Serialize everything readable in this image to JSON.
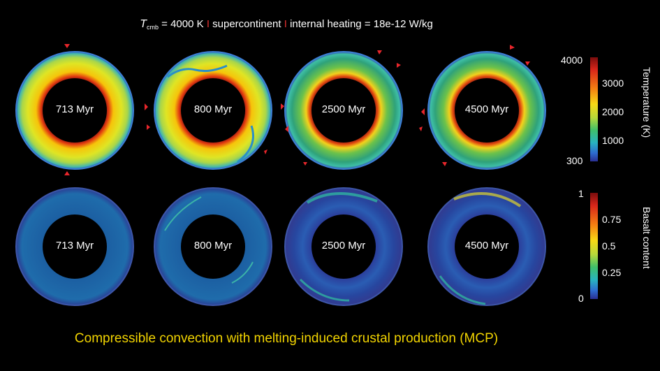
{
  "header": {
    "t_symbol": "T",
    "t_sub": "cmb",
    "t_value": " = 4000 K ",
    "sep1": "I",
    "part2": " supercontinent ",
    "sep2": "I",
    "part3": " internal heating = 18e-12 W/kg"
  },
  "row_temperature": {
    "panels": [
      {
        "label": "713 Myr"
      },
      {
        "label": "800 Myr"
      },
      {
        "label": "2500 Myr"
      },
      {
        "label": "4500 Myr"
      }
    ]
  },
  "row_basalt": {
    "panels": [
      {
        "label": "713 Myr"
      },
      {
        "label": "800 Myr"
      },
      {
        "label": "2500 Myr"
      },
      {
        "label": "4500 Myr"
      }
    ]
  },
  "temperature_bar": {
    "title": "Temperature (K)",
    "min_label": "300",
    "max_label": "4000",
    "ticks": [
      "3000",
      "2000",
      "1000"
    ]
  },
  "basalt_bar": {
    "title": "Basalt content",
    "min_label": "0",
    "max_label": "1",
    "ticks": [
      "0.75",
      "0.5",
      "0.25"
    ]
  },
  "caption": "Compressible convection with melting-induced crustal production (MCP)",
  "colors": {
    "caption": "#f2d400",
    "separator": "#e03030",
    "marker": "#e8262b"
  }
}
